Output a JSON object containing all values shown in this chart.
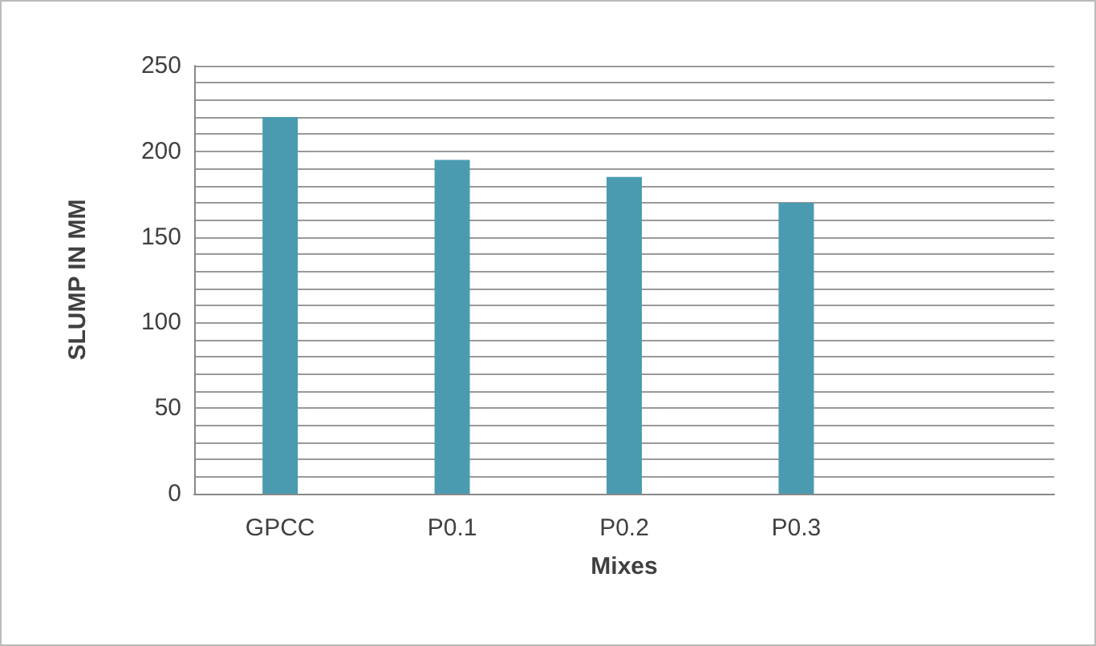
{
  "chart_data": {
    "type": "bar",
    "xlabel": "Mixes",
    "ylabel": "SLUMP IN MM",
    "categories": [
      "GPCC",
      "P0.1",
      "P0.2",
      "P0.3",
      null
    ],
    "values": [
      220,
      195,
      185,
      170,
      null
    ],
    "color": "#4a9bb0",
    "ylim": [
      0,
      250
    ],
    "yticks": [
      0,
      {
        "value": 10,
        "label": null
      },
      {
        "value": 20,
        "label": null
      },
      {
        "value": 30,
        "label": null
      },
      {
        "value": 40,
        "label": null
      },
      50,
      {
        "value": 60,
        "label": null
      },
      {
        "value": 70,
        "label": null
      },
      {
        "value": 80,
        "label": null
      },
      {
        "value": 90,
        "label": null
      },
      100,
      {
        "value": 110,
        "label": null
      },
      {
        "value": 120,
        "label": null
      },
      {
        "value": 130,
        "label": null
      },
      {
        "value": 140,
        "label": null
      },
      150,
      {
        "value": 160,
        "label": null
      },
      {
        "value": 170,
        "label": null
      },
      {
        "value": 180,
        "label": null
      },
      {
        "value": 190,
        "label": null
      },
      200,
      {
        "value": 210,
        "label": null
      },
      {
        "value": 220,
        "label": null
      },
      {
        "value": 230,
        "label": null
      },
      {
        "value": 240,
        "label": null
      },
      250
    ],
    "grid": true
  }
}
